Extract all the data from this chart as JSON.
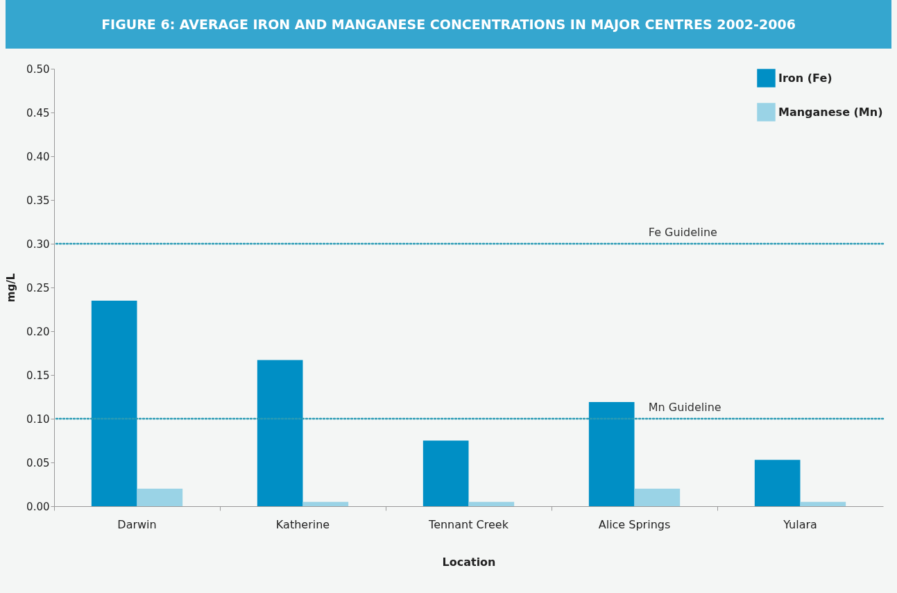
{
  "chart_data": {
    "type": "bar",
    "title": "FIGURE 6: AVERAGE IRON AND MANGANESE CONCENTRATIONS IN MAJOR CENTRES 2002-2006",
    "categories": [
      "Darwin",
      "Katherine",
      "Tennant Creek",
      "Alice Springs",
      "Yulara"
    ],
    "series": [
      {
        "name": "Iron (Fe)",
        "color": "#008fc5",
        "values": [
          0.235,
          0.167,
          0.075,
          0.119,
          0.053
        ]
      },
      {
        "name": "Manganese (Mn)",
        "color": "#9ad3e6",
        "values": [
          0.02,
          0.005,
          0.005,
          0.02,
          0.005
        ]
      }
    ],
    "xlabel": "Location",
    "ylabel": "mg/L",
    "ylim": [
      0,
      0.5
    ],
    "yticks": [
      {
        "value": 0,
        "label": "0.00"
      },
      {
        "value": 0.05,
        "label": "0.05"
      },
      {
        "value": 0.1,
        "label": "0.10"
      },
      {
        "value": 0.15,
        "label": "0.15"
      },
      {
        "value": 0.2,
        "label": "0.20"
      },
      {
        "value": 0.25,
        "label": "0.25"
      },
      {
        "value": 0.3,
        "label": "0.30"
      },
      {
        "value": 0.35,
        "label": "0.35"
      },
      {
        "value": 0.4,
        "label": "0.40"
      },
      {
        "value": 0.45,
        "label": "0.45"
      },
      {
        "value": 0.5,
        "label": "0.50"
      }
    ],
    "ref_lines": [
      {
        "axis": "y",
        "value": 0.3,
        "label": "Fe Guideline",
        "color": "#2a9bb5",
        "line_style": "dotted"
      },
      {
        "axis": "y",
        "value": 0.1,
        "label": "Mn Guideline",
        "color": "#2a9bb5",
        "line_style": "dotted"
      }
    ],
    "grid": false,
    "legend": "top right"
  }
}
